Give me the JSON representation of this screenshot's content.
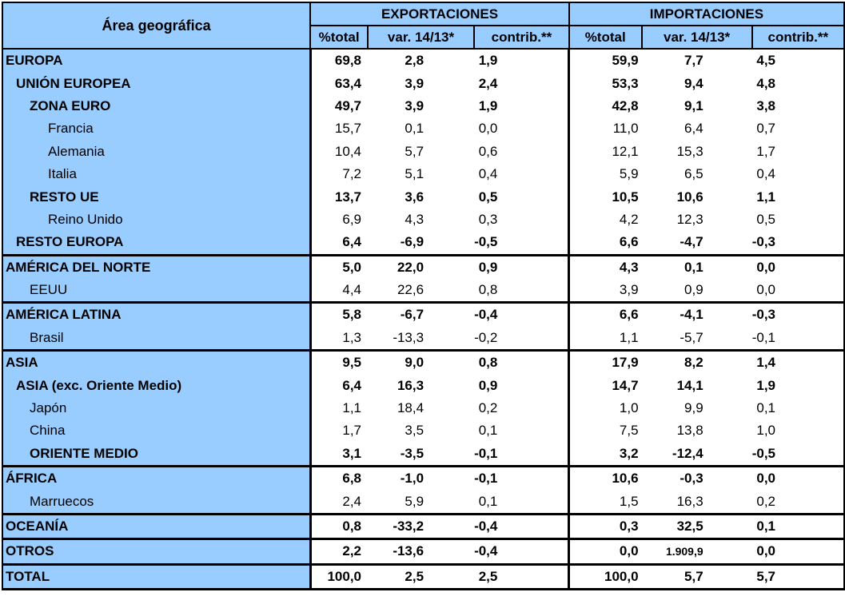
{
  "header": {
    "area": "Área geográfica",
    "exports": "EXPORTACIONES",
    "imports": "IMPORTACIONES",
    "subcols": [
      "%total",
      "var. 14/13*",
      "contrib.**"
    ]
  },
  "rows": [
    {
      "name": "EUROPA",
      "level": 0,
      "bold": true,
      "values": [
        "69,8",
        "2,8",
        "1,9",
        "59,9",
        "7,7",
        "4,5"
      ]
    },
    {
      "name": "UNIÓN EUROPEA",
      "level": 1,
      "bold": true,
      "values": [
        "63,4",
        "3,9",
        "2,4",
        "53,3",
        "9,4",
        "4,8"
      ]
    },
    {
      "name": "ZONA EURO",
      "level": 2,
      "bold": true,
      "values": [
        "49,7",
        "3,9",
        "1,9",
        "42,8",
        "9,1",
        "3,8"
      ]
    },
    {
      "name": "Francia",
      "level": 3,
      "bold": false,
      "values": [
        "15,7",
        "0,1",
        "0,0",
        "11,0",
        "6,4",
        "0,7"
      ]
    },
    {
      "name": "Alemania",
      "level": 3,
      "bold": false,
      "values": [
        "10,4",
        "5,7",
        "0,6",
        "12,1",
        "15,3",
        "1,7"
      ]
    },
    {
      "name": "Italia",
      "level": 3,
      "bold": false,
      "values": [
        "7,2",
        "5,1",
        "0,4",
        "5,9",
        "6,5",
        "0,4"
      ]
    },
    {
      "name": "RESTO UE",
      "level": 2,
      "bold": true,
      "values": [
        "13,7",
        "3,6",
        "0,5",
        "10,5",
        "10,6",
        "1,1"
      ]
    },
    {
      "name": "Reino Unido",
      "level": 3,
      "bold": false,
      "values": [
        "6,9",
        "4,3",
        "0,3",
        "4,2",
        "12,3",
        "0,5"
      ]
    },
    {
      "name": "RESTO EUROPA",
      "level": 1,
      "bold": true,
      "sep": true,
      "values": [
        "6,4",
        "-6,9",
        "-0,5",
        "6,6",
        "-4,7",
        "-0,3"
      ]
    },
    {
      "name": "AMÉRICA DEL NORTE",
      "level": 0,
      "bold": true,
      "values": [
        "5,0",
        "22,0",
        "0,9",
        "4,3",
        "0,1",
        "0,0"
      ]
    },
    {
      "name": "EEUU",
      "level": 2,
      "bold": false,
      "sep": true,
      "values": [
        "4,4",
        "22,6",
        "0,8",
        "3,9",
        "0,9",
        "0,0"
      ]
    },
    {
      "name": "AMÉRICA LATINA",
      "level": 0,
      "bold": true,
      "values": [
        "5,8",
        "-6,7",
        "-0,4",
        "6,6",
        "-4,1",
        "-0,3"
      ]
    },
    {
      "name": "Brasil",
      "level": 2,
      "bold": false,
      "sep": true,
      "values": [
        "1,3",
        "-13,3",
        "-0,2",
        "1,1",
        "-5,7",
        "-0,1"
      ]
    },
    {
      "name": "ASIA",
      "level": 0,
      "bold": true,
      "values": [
        "9,5",
        "9,0",
        "0,8",
        "17,9",
        "8,2",
        "1,4"
      ]
    },
    {
      "name": "ASIA (exc. Oriente Medio)",
      "level": 1,
      "bold": true,
      "values": [
        "6,4",
        "16,3",
        "0,9",
        "14,7",
        "14,1",
        "1,9"
      ]
    },
    {
      "name": "Japón",
      "level": 2,
      "bold": false,
      "values": [
        "1,1",
        "18,4",
        "0,2",
        "1,0",
        "9,9",
        "0,1"
      ]
    },
    {
      "name": "China",
      "level": 2,
      "bold": false,
      "values": [
        "1,7",
        "3,5",
        "0,1",
        "7,5",
        "13,8",
        "1,0"
      ]
    },
    {
      "name": "ORIENTE MEDIO",
      "level": 2,
      "bold": true,
      "sep": true,
      "values": [
        "3,1",
        "-3,5",
        "-0,1",
        "3,2",
        "-12,4",
        "-0,5"
      ]
    },
    {
      "name": "ÁFRICA",
      "level": 0,
      "bold": true,
      "values": [
        "6,8",
        "-1,0",
        "-0,1",
        "10,6",
        "-0,3",
        "0,0"
      ]
    },
    {
      "name": "Marruecos",
      "level": 2,
      "bold": false,
      "sep": true,
      "values": [
        "2,4",
        "5,9",
        "0,1",
        "1,5",
        "16,3",
        "0,2"
      ]
    },
    {
      "name": "OCEANÍA",
      "level": 0,
      "bold": true,
      "sep": true,
      "values": [
        "0,8",
        "-33,2",
        "-0,4",
        "0,3",
        "32,5",
        "0,1"
      ]
    },
    {
      "name": "OTROS",
      "level": 0,
      "bold": true,
      "sep": true,
      "values": [
        "2,2",
        "-13,6",
        "-0,4",
        "0,0",
        "1.909,9",
        "0,0"
      ]
    },
    {
      "name": "TOTAL",
      "level": 0,
      "bold": true,
      "sep": true,
      "values": [
        "100,0",
        "2,5",
        "2,5",
        "100,0",
        "5,7",
        "5,7"
      ]
    }
  ]
}
